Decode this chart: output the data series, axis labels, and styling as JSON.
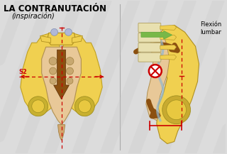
{
  "title": "LA CONTRANUTACIÓN",
  "subtitle": "(inspiración)",
  "flexion_label": "Flexión\nlumbar",
  "s2_label": "S2",
  "bg_color": "#dcdcdc",
  "bone_yellow": "#f0d050",
  "bone_yellow2": "#e8c840",
  "sacrum_tan": "#d4a870",
  "sacrum_light": "#e8c898",
  "arrow_brown": "#8B5010",
  "arrow_green": "#78b848",
  "dashed_red": "#cc0000",
  "spine_cream": "#e8e0b0",
  "spine_green_dark": "#60a840",
  "circle_red": "#cc0000",
  "joint_blue": "#b0b8d8",
  "disc_blue": "#90b8d0"
}
